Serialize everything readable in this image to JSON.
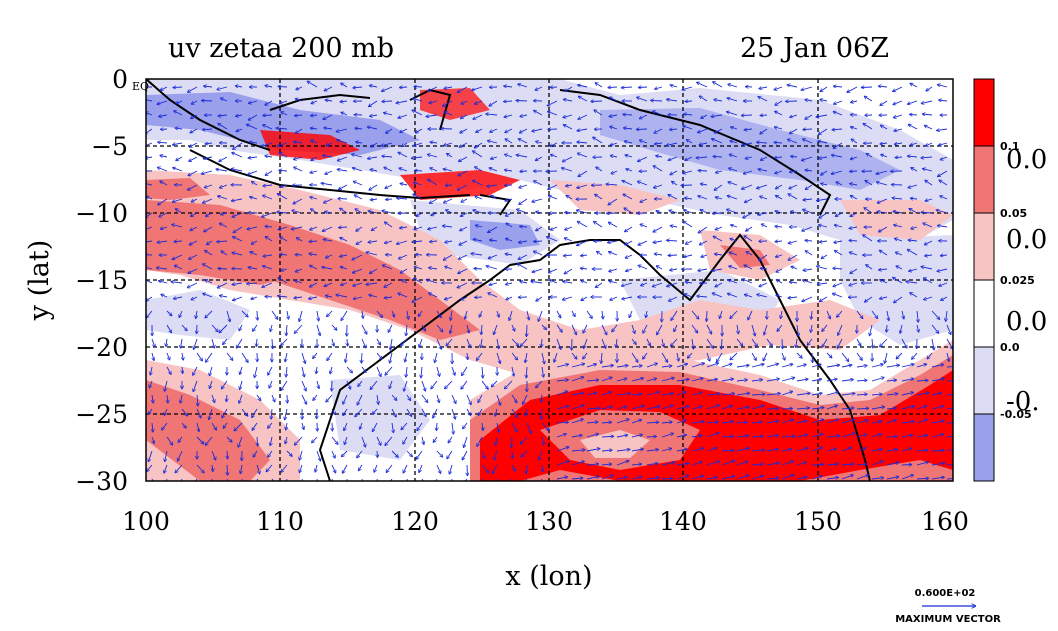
{
  "title": {
    "left": "uv zetaa 200 mb",
    "right": "25 Jan 06Z"
  },
  "axes": {
    "xlabel": "x (lon)",
    "ylabel": "y (lat)",
    "x_ticks": [
      "100",
      "110",
      "120",
      "130",
      "140",
      "150",
      "160"
    ],
    "y_ticks": [
      "0",
      "−5",
      "−10",
      "−15",
      "−20",
      "−25",
      "−30"
    ],
    "eq_label": "EQ"
  },
  "colorbar": {
    "labels": [
      "0.1",
      "0.05",
      "0.025",
      "0.0",
      "-0.05"
    ],
    "big_labels": [
      "0.0",
      "0.0",
      "0.0",
      "-0."
    ],
    "colors": [
      "#ff0000",
      "#f07575",
      "#f7c3c3",
      "#ffffff",
      "#dcdcf5",
      "#9aa0ec"
    ]
  },
  "vector_key": {
    "value": "0.600E+02",
    "label": "MAXIMUM VECTOR"
  },
  "colors": {
    "strong_pos": "#ff0000",
    "mid_pos": "#f07575",
    "weak_pos": "#f7c3c3",
    "weak_neg": "#dcdcf5",
    "mid_neg": "#9aa0ec",
    "vectors": "#1a2bd6",
    "coast": "#000000"
  },
  "chart_data": {
    "type": "map",
    "title": "uv zetaa 200 mb",
    "valid_time": "25 Jan 06Z",
    "xlabel": "x (lon)",
    "ylabel": "y (lat)",
    "xlim": [
      100,
      160
    ],
    "ylim": [
      -30,
      0
    ],
    "grid": true,
    "field": "absolute vorticity (zetaa) shaded, wind vectors (uv) at 200 mb",
    "contour_levels": [
      -0.05,
      0.0,
      0.025,
      0.05,
      0.1
    ],
    "vector_max": "0.600E+02"
  }
}
